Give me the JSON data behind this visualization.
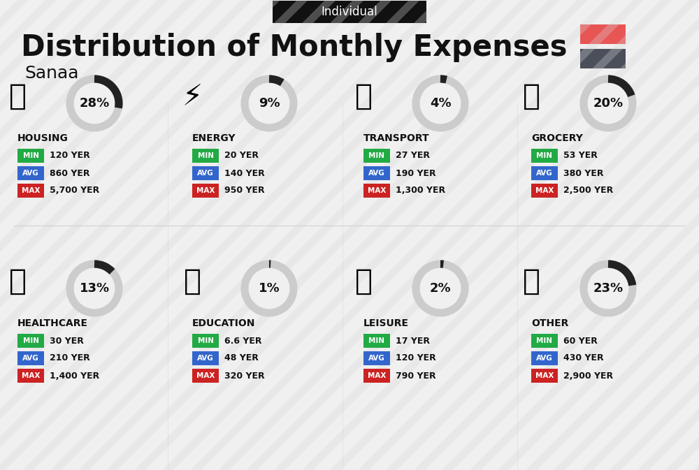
{
  "title": "Distribution of Monthly Expenses",
  "subtitle": "Individual",
  "city": "Sanaa",
  "bg_color": "#f0f0f0",
  "header_bg": "#111111",
  "header_text_color": "#ffffff",
  "title_color": "#111111",
  "city_color": "#111111",
  "legend_colors": [
    "#e85555",
    "#4a4f5a"
  ],
  "categories": [
    {
      "name": "HOUSING",
      "pct": 28,
      "min_val": "120 YER",
      "avg_val": "860 YER",
      "max_val": "5,700 YER",
      "row": 0,
      "col": 0
    },
    {
      "name": "ENERGY",
      "pct": 9,
      "min_val": "20 YER",
      "avg_val": "140 YER",
      "max_val": "950 YER",
      "row": 0,
      "col": 1
    },
    {
      "name": "TRANSPORT",
      "pct": 4,
      "min_val": "27 YER",
      "avg_val": "190 YER",
      "max_val": "1,300 YER",
      "row": 0,
      "col": 2
    },
    {
      "name": "GROCERY",
      "pct": 20,
      "min_val": "53 YER",
      "avg_val": "380 YER",
      "max_val": "2,500 YER",
      "row": 0,
      "col": 3
    },
    {
      "name": "HEALTHCARE",
      "pct": 13,
      "min_val": "30 YER",
      "avg_val": "210 YER",
      "max_val": "1,400 YER",
      "row": 1,
      "col": 0
    },
    {
      "name": "EDUCATION",
      "pct": 1,
      "min_val": "6.6 YER",
      "avg_val": "48 YER",
      "max_val": "320 YER",
      "row": 1,
      "col": 1
    },
    {
      "name": "LEISURE",
      "pct": 2,
      "min_val": "17 YER",
      "avg_val": "120 YER",
      "max_val": "790 YER",
      "row": 1,
      "col": 2
    },
    {
      "name": "OTHER",
      "pct": 23,
      "min_val": "60 YER",
      "avg_val": "430 YER",
      "max_val": "2,900 YER",
      "row": 1,
      "col": 3
    }
  ],
  "min_color": "#22aa44",
  "avg_color": "#3366cc",
  "max_color": "#cc2222",
  "label_text_color": "#ffffff",
  "value_text_color": "#111111",
  "donut_fill_color": "#222222",
  "donut_empty_color": "#cccccc",
  "donut_bg_color": "#ffffff"
}
